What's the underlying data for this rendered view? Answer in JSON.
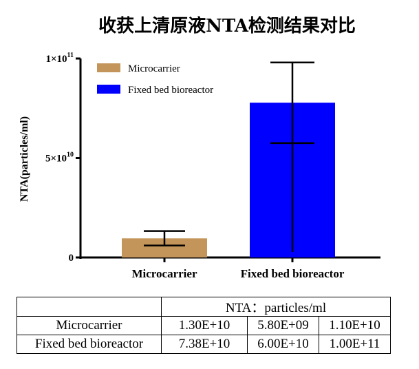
{
  "chart_data": {
    "type": "bar",
    "title": "收获上清原液NTA检测结果对比",
    "ylabel": "NTA(particles/ml)",
    "xlabel": "",
    "ylim": [
      0,
      100000000000
    ],
    "yticks": [
      {
        "value": 0,
        "base": "0",
        "exp": ""
      },
      {
        "value": 50000000000,
        "base": "5×10",
        "exp": "10"
      },
      {
        "value": 100000000000,
        "base": "1×10",
        "exp": "11"
      }
    ],
    "categories": [
      "Microcarrier",
      "Fixed bed bioreactor"
    ],
    "values": [
      9600000000,
      77800000000
    ],
    "error_low": [
      6000000000,
      57500000000
    ],
    "error_high": [
      13300000000,
      98000000000
    ],
    "colors": [
      "#c4955a",
      "#0000ff"
    ],
    "legend": {
      "placement": "top-left",
      "entries": [
        {
          "name": "Microcarrier",
          "color": "#c4955a"
        },
        {
          "name": "Fixed bed bioreactor",
          "color": "#0000ff"
        }
      ]
    },
    "grid": false
  },
  "table": {
    "header": "NTA：particles/ml",
    "rows": [
      {
        "label": "Microcarrier",
        "cells": [
          "1.30E+10",
          "5.80E+09",
          "1.10E+10"
        ]
      },
      {
        "label": "Fixed bed bioreactor",
        "cells": [
          "7.38E+10",
          "6.00E+10",
          "1.00E+11"
        ]
      }
    ]
  }
}
